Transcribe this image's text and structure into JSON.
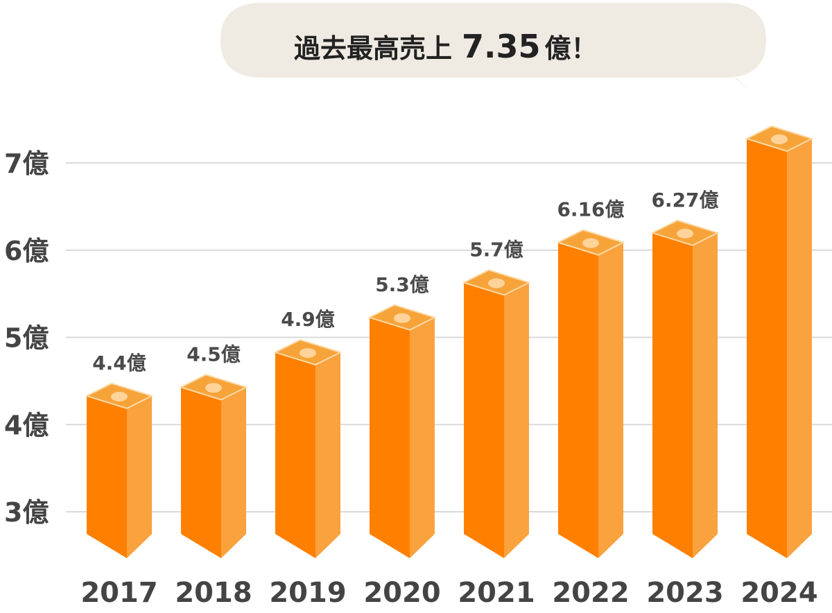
{
  "chart_data": {
    "type": "bar",
    "title": "過去最高売上 7.35億！",
    "title_parts": {
      "prefix": "過去最高売上",
      "value": "7.35",
      "suffix": "億！"
    },
    "categories": [
      "2017",
      "2018",
      "2019",
      "2020",
      "2021",
      "2022",
      "2023",
      "2024"
    ],
    "values": [
      4.4,
      4.5,
      4.9,
      5.3,
      5.7,
      6.16,
      6.27,
      7.35
    ],
    "data_labels": [
      "4.4億",
      "4.5億",
      "4.9億",
      "5.3億",
      "5.7億",
      "6.16億",
      "6.27億",
      ""
    ],
    "ylim": [
      2.5,
      7.5
    ],
    "yticks": [
      3,
      4,
      5,
      6,
      7
    ],
    "ytick_labels": [
      "3億",
      "4億",
      "5億",
      "6億",
      "7億"
    ],
    "xlabel": "",
    "ylabel": "",
    "grid": true
  },
  "colors": {
    "bar_front": "#FF8000",
    "bar_side": "#F9A23E",
    "bar_top": "#F6A43A",
    "bar_top_edge": "#FCD9A6",
    "highlight": "#FFD39A",
    "grid": "#D9D9D9",
    "bubble": "#EFEBE3"
  }
}
